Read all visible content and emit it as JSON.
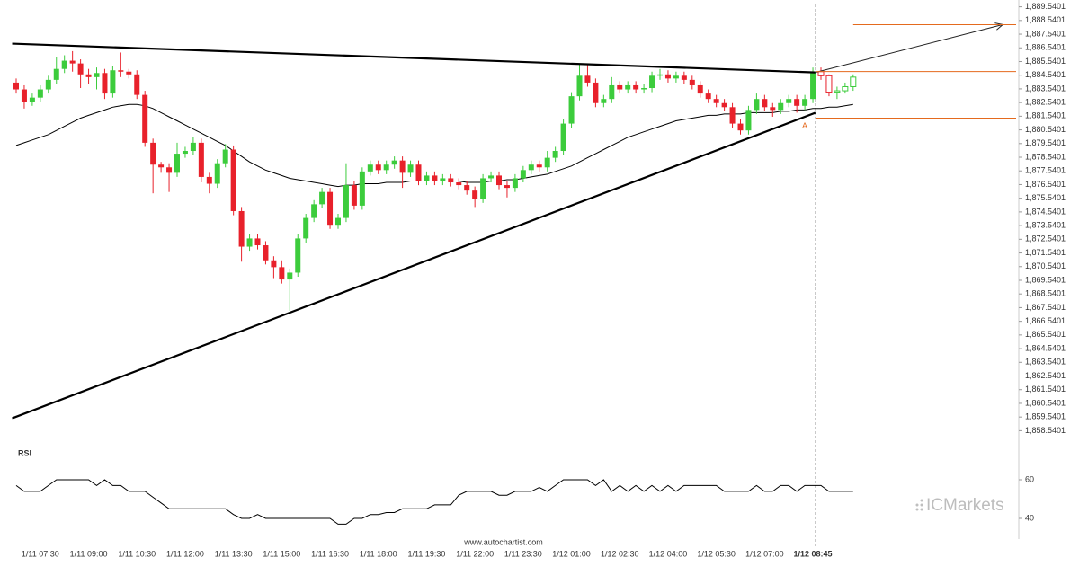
{
  "chart_data": {
    "type": "candlestick",
    "up_color": "#3ccc3c",
    "down_color": "#e8212b",
    "ma_color": "#000000",
    "pattern_color": "#000000",
    "level_color": "#e46a1e",
    "ylim": [
      1858.0401,
      1890.0401
    ],
    "yticks": [
      {
        "value": 1858.5401,
        "label": "1,858.5401"
      },
      {
        "value": 1859.5401,
        "label": "1,859.5401"
      },
      {
        "value": 1860.5401,
        "label": "1,860.5401"
      },
      {
        "value": 1861.5401,
        "label": "1,861.5401"
      },
      {
        "value": 1862.5401,
        "label": "1,862.5401"
      },
      {
        "value": 1863.5401,
        "label": "1,863.5401"
      },
      {
        "value": 1864.5401,
        "label": "1,864.5401"
      },
      {
        "value": 1865.5401,
        "label": "1,865.5401"
      },
      {
        "value": 1866.5401,
        "label": "1,866.5401"
      },
      {
        "value": 1867.5401,
        "label": "1,867.5401"
      },
      {
        "value": 1868.5401,
        "label": "1,868.5401"
      },
      {
        "value": 1869.5401,
        "label": "1,869.5401"
      },
      {
        "value": 1870.5401,
        "label": "1,870.5401"
      },
      {
        "value": 1871.5401,
        "label": "1,871.5401"
      },
      {
        "value": 1872.5401,
        "label": "1,872.5401"
      },
      {
        "value": 1873.5401,
        "label": "1,873.5401"
      },
      {
        "value": 1874.5401,
        "label": "1,874.5401"
      },
      {
        "value": 1875.5401,
        "label": "1,875.5401"
      },
      {
        "value": 1876.5401,
        "label": "1,876.5401"
      },
      {
        "value": 1877.5401,
        "label": "1,877.5401"
      },
      {
        "value": 1878.5401,
        "label": "1,878.5401"
      },
      {
        "value": 1879.5401,
        "label": "1,879.5401"
      },
      {
        "value": 1880.5401,
        "label": "1,880.5401"
      },
      {
        "value": 1881.5401,
        "label": "1,881.5401"
      },
      {
        "value": 1882.5401,
        "label": "1,882.5401"
      },
      {
        "value": 1883.5401,
        "label": "1,883.5401"
      },
      {
        "value": 1884.5401,
        "label": "1,884.5401"
      },
      {
        "value": 1885.5401,
        "label": "1,885.5401"
      },
      {
        "value": 1886.5401,
        "label": "1,886.5401"
      },
      {
        "value": 1887.5401,
        "label": "1,887.5401"
      },
      {
        "value": 1888.5401,
        "label": "1,888.5401"
      },
      {
        "value": 1889.5401,
        "label": "1,889.5401"
      }
    ],
    "categories": [
      null,
      null,
      null,
      "1/11 07:30",
      null,
      null,
      null,
      null,
      null,
      "1/11 09:00",
      null,
      null,
      null,
      null,
      null,
      "1/11 10:30",
      null,
      null,
      null,
      null,
      null,
      "1/11 12:00",
      null,
      null,
      null,
      null,
      null,
      "1/11 13:30",
      null,
      null,
      null,
      null,
      null,
      "1/11 15:00",
      null,
      null,
      null,
      null,
      null,
      "1/11 16:30",
      null,
      null,
      null,
      null,
      null,
      "1/11 18:00",
      null,
      null,
      null,
      null,
      null,
      "1/11 19:30",
      null,
      null,
      null,
      null,
      null,
      "1/11 22:00",
      null,
      null,
      null,
      null,
      null,
      "1/11 23:30",
      null,
      null,
      null,
      null,
      null,
      "1/12 01:00",
      null,
      null,
      null,
      null,
      null,
      "1/12 02:30",
      null,
      null,
      null,
      null,
      null,
      "1/12 04:00",
      null,
      null,
      null,
      null,
      null,
      "1/12 05:30",
      null,
      null,
      null,
      null,
      null,
      "1/12 07:00",
      null,
      null,
      null,
      null,
      null,
      "1/12 08:45",
      null,
      null,
      null,
      null,
      null
    ],
    "candles": [
      [
        1884.0,
        1884.3,
        1883.2,
        1883.5
      ],
      [
        1883.5,
        1883.8,
        1882.1,
        1882.6
      ],
      [
        1882.6,
        1883.2,
        1882.3,
        1882.9
      ],
      [
        1882.9,
        1883.8,
        1882.6,
        1883.5
      ],
      [
        1883.5,
        1884.5,
        1883.2,
        1884.2
      ],
      [
        1884.2,
        1885.9,
        1883.9,
        1885.0
      ],
      [
        1885.0,
        1886.0,
        1884.7,
        1885.6
      ],
      [
        1885.6,
        1886.3,
        1884.8,
        1885.4
      ],
      [
        1885.4,
        1885.7,
        1883.6,
        1884.6
      ],
      [
        1884.6,
        1885.0,
        1883.9,
        1884.4
      ],
      [
        1884.4,
        1885.1,
        1883.5,
        1884.7
      ],
      [
        1884.7,
        1885.0,
        1882.8,
        1883.2
      ],
      [
        1883.2,
        1885.2,
        1882.9,
        1884.9
      ],
      [
        1884.9,
        1886.2,
        1884.4,
        1884.8
      ],
      [
        1884.8,
        1885.0,
        1884.3,
        1884.6
      ],
      [
        1884.6,
        1884.9,
        1882.8,
        1883.1
      ],
      [
        1883.1,
        1883.4,
        1879.3,
        1879.6
      ],
      [
        1879.6,
        1879.9,
        1875.9,
        1878.0
      ],
      [
        1878.0,
        1878.2,
        1877.4,
        1877.8
      ],
      [
        1877.8,
        1878.1,
        1876.0,
        1877.4
      ],
      [
        1877.4,
        1879.6,
        1877.1,
        1878.8
      ],
      [
        1878.8,
        1879.3,
        1878.5,
        1879.0
      ],
      [
        1879.0,
        1880.0,
        1878.7,
        1879.6
      ],
      [
        1879.6,
        1879.9,
        1876.7,
        1877.1
      ],
      [
        1877.1,
        1877.4,
        1875.9,
        1876.6
      ],
      [
        1876.6,
        1878.4,
        1876.3,
        1878.1
      ],
      [
        1878.1,
        1879.5,
        1877.8,
        1879.1
      ],
      [
        1879.1,
        1879.4,
        1874.3,
        1874.6
      ],
      [
        1874.6,
        1874.9,
        1870.9,
        1872.0
      ],
      [
        1872.0,
        1872.9,
        1871.7,
        1872.6
      ],
      [
        1872.6,
        1872.9,
        1871.8,
        1872.1
      ],
      [
        1872.1,
        1872.4,
        1870.7,
        1871.0
      ],
      [
        1871.0,
        1871.3,
        1869.7,
        1870.5
      ],
      [
        1870.5,
        1871.0,
        1869.3,
        1869.6
      ],
      [
        1869.6,
        1870.4,
        1867.3,
        1870.1
      ],
      [
        1870.1,
        1872.9,
        1869.8,
        1872.6
      ],
      [
        1872.6,
        1874.4,
        1872.3,
        1874.1
      ],
      [
        1874.1,
        1875.4,
        1873.8,
        1875.1
      ],
      [
        1875.1,
        1876.3,
        1874.8,
        1876.0
      ],
      [
        1876.0,
        1876.3,
        1873.3,
        1873.6
      ],
      [
        1873.6,
        1874.4,
        1873.3,
        1874.1
      ],
      [
        1874.1,
        1878.1,
        1873.8,
        1876.5
      ],
      [
        1876.5,
        1876.8,
        1874.7,
        1875.0
      ],
      [
        1875.0,
        1877.8,
        1874.7,
        1877.5
      ],
      [
        1877.5,
        1878.3,
        1877.2,
        1878.0
      ],
      [
        1878.0,
        1878.3,
        1877.3,
        1877.6
      ],
      [
        1877.6,
        1878.3,
        1877.3,
        1878.0
      ],
      [
        1878.0,
        1878.6,
        1877.7,
        1878.3
      ],
      [
        1878.3,
        1878.6,
        1876.3,
        1877.4
      ],
      [
        1877.4,
        1878.3,
        1877.1,
        1878.0
      ],
      [
        1878.0,
        1878.3,
        1876.5,
        1876.8
      ],
      [
        1876.8,
        1877.5,
        1876.5,
        1877.2
      ],
      [
        1877.2,
        1877.5,
        1876.5,
        1876.8
      ],
      [
        1876.8,
        1877.3,
        1876.5,
        1877.0
      ],
      [
        1877.0,
        1877.3,
        1876.4,
        1876.7
      ],
      [
        1876.7,
        1877.0,
        1876.2,
        1876.5
      ],
      [
        1876.5,
        1876.8,
        1875.8,
        1876.1
      ],
      [
        1876.1,
        1876.4,
        1874.9,
        1875.5
      ],
      [
        1875.5,
        1877.3,
        1875.2,
        1877.0
      ],
      [
        1877.0,
        1877.5,
        1876.7,
        1877.2
      ],
      [
        1877.2,
        1877.5,
        1876.2,
        1876.5
      ],
      [
        1876.5,
        1876.8,
        1875.6,
        1876.3
      ],
      [
        1876.3,
        1877.3,
        1876.0,
        1877.0
      ],
      [
        1877.0,
        1877.9,
        1876.7,
        1877.6
      ],
      [
        1877.6,
        1878.3,
        1877.3,
        1878.0
      ],
      [
        1878.0,
        1878.3,
        1877.5,
        1877.8
      ],
      [
        1877.8,
        1879.0,
        1877.5,
        1878.5
      ],
      [
        1878.5,
        1879.3,
        1878.2,
        1879.0
      ],
      [
        1879.0,
        1881.3,
        1878.7,
        1881.0
      ],
      [
        1881.0,
        1883.3,
        1880.7,
        1883.0
      ],
      [
        1883.0,
        1885.4,
        1882.7,
        1884.5
      ],
      [
        1884.5,
        1885.3,
        1883.7,
        1884.0
      ],
      [
        1884.0,
        1884.3,
        1882.2,
        1882.5
      ],
      [
        1882.5,
        1883.1,
        1882.2,
        1882.8
      ],
      [
        1882.8,
        1884.4,
        1882.5,
        1883.8
      ],
      [
        1883.8,
        1884.1,
        1883.2,
        1883.5
      ],
      [
        1883.5,
        1884.1,
        1883.2,
        1883.8
      ],
      [
        1883.8,
        1884.1,
        1883.2,
        1883.5
      ],
      [
        1883.5,
        1883.9,
        1883.2,
        1883.6
      ],
      [
        1883.6,
        1884.8,
        1883.3,
        1884.5
      ],
      [
        1884.5,
        1885.0,
        1884.2,
        1884.6
      ],
      [
        1884.6,
        1884.9,
        1884.0,
        1884.3
      ],
      [
        1884.3,
        1884.8,
        1884.0,
        1884.5
      ],
      [
        1884.5,
        1884.8,
        1883.9,
        1884.2
      ],
      [
        1884.2,
        1884.5,
        1883.5,
        1883.8
      ],
      [
        1883.8,
        1884.1,
        1882.9,
        1883.2
      ],
      [
        1883.2,
        1883.5,
        1882.5,
        1882.8
      ],
      [
        1882.8,
        1883.1,
        1882.2,
        1882.5
      ],
      [
        1882.5,
        1882.8,
        1881.9,
        1882.2
      ],
      [
        1882.2,
        1882.5,
        1880.7,
        1881.0
      ],
      [
        1881.0,
        1881.3,
        1880.2,
        1880.5
      ],
      [
        1880.5,
        1882.3,
        1880.2,
        1882.0
      ],
      [
        1882.0,
        1883.2,
        1881.7,
        1882.8
      ],
      [
        1882.8,
        1883.1,
        1881.9,
        1882.2
      ],
      [
        1882.2,
        1882.5,
        1881.5,
        1882.0
      ],
      [
        1882.0,
        1882.8,
        1881.7,
        1882.5
      ],
      [
        1882.5,
        1883.1,
        1882.2,
        1882.8
      ],
      [
        1882.8,
        1883.1,
        1881.8,
        1882.3
      ],
      [
        1882.3,
        1883.1,
        1882.0,
        1882.8
      ],
      [
        1882.8,
        1885.1,
        1882.5,
        1884.8
      ]
    ],
    "post_candles": [
      [
        1884.8,
        1885.1,
        1884.2,
        1884.5
      ],
      [
        1884.5,
        1884.6,
        1883.0,
        1883.3
      ],
      [
        1883.3,
        1883.7,
        1882.8,
        1883.4
      ],
      [
        1883.4,
        1884.0,
        1883.2,
        1883.7
      ],
      [
        1883.7,
        1884.6,
        1883.4,
        1884.4
      ]
    ],
    "ma_values": [
      1879.4,
      1879.6,
      1879.8,
      1880.0,
      1880.2,
      1880.5,
      1880.8,
      1881.1,
      1881.4,
      1881.6,
      1881.8,
      1882.0,
      1882.2,
      1882.3,
      1882.4,
      1882.4,
      1882.3,
      1882.1,
      1881.8,
      1881.5,
      1881.2,
      1880.9,
      1880.6,
      1880.3,
      1880.0,
      1879.7,
      1879.4,
      1879.0,
      1878.6,
      1878.2,
      1877.9,
      1877.6,
      1877.4,
      1877.2,
      1877.0,
      1876.9,
      1876.8,
      1876.7,
      1876.6,
      1876.5,
      1876.4,
      1876.5,
      1876.5,
      1876.6,
      1876.6,
      1876.6,
      1876.7,
      1876.7,
      1876.7,
      1876.8,
      1876.8,
      1876.8,
      1876.8,
      1876.8,
      1876.8,
      1876.8,
      1876.7,
      1876.7,
      1876.7,
      1876.8,
      1876.8,
      1876.9,
      1876.9,
      1877.0,
      1877.1,
      1877.2,
      1877.3,
      1877.5,
      1877.7,
      1877.9,
      1878.2,
      1878.5,
      1878.8,
      1879.1,
      1879.4,
      1879.7,
      1880.0,
      1880.2,
      1880.4,
      1880.6,
      1880.8,
      1881.0,
      1881.2,
      1881.3,
      1881.4,
      1881.5,
      1881.6,
      1881.6,
      1881.7,
      1881.7,
      1881.7,
      1881.8,
      1881.8,
      1881.8,
      1881.8,
      1881.9,
      1881.9,
      1882.0,
      1882.0,
      1882.1,
      1882.1,
      1882.2,
      1882.2,
      1882.3,
      1882.4
    ],
    "trendlines": [
      {
        "x": [
          -0.5,
          99.3
        ],
        "values": [
          1886.85,
          1884.74
        ]
      },
      {
        "x": [
          -0.5,
          99.3
        ],
        "values": [
          1859.45,
          1881.79
        ]
      }
    ],
    "forecast_arrow": {
      "x": [
        99.3,
        122.6
      ],
      "values": [
        1884.74,
        1888.24
      ]
    },
    "levels": [
      1888.23,
      1884.81,
      1881.4
    ],
    "point_label": "A",
    "rsi": {
      "title": "RSI",
      "ylim": [
        34,
        64
      ],
      "yticks": [
        40,
        60
      ],
      "values": [
        57,
        54,
        54,
        54,
        57,
        60,
        60,
        60,
        60,
        60,
        57,
        60,
        57,
        57,
        54,
        54,
        54,
        51,
        48,
        45,
        45,
        45,
        45,
        45,
        45,
        45,
        45,
        42,
        40,
        40,
        42,
        40,
        40,
        40,
        40,
        40,
        40,
        40,
        40,
        40,
        37,
        37,
        40,
        40,
        42,
        42,
        43,
        43,
        45,
        45,
        45,
        45,
        47,
        47,
        47,
        52,
        54,
        54,
        54,
        54,
        52,
        52,
        54,
        54,
        54,
        56,
        54,
        57,
        60,
        60,
        60,
        60,
        57,
        60,
        54,
        57,
        54,
        57,
        54,
        57,
        54,
        57,
        54,
        57,
        57,
        57,
        57,
        57,
        54,
        54,
        54,
        54,
        57,
        54,
        54,
        57,
        57,
        54,
        57,
        57,
        57,
        54,
        54,
        54,
        54
      ]
    },
    "source": "www.autochartist.com",
    "watermark": "ICMarkets"
  }
}
